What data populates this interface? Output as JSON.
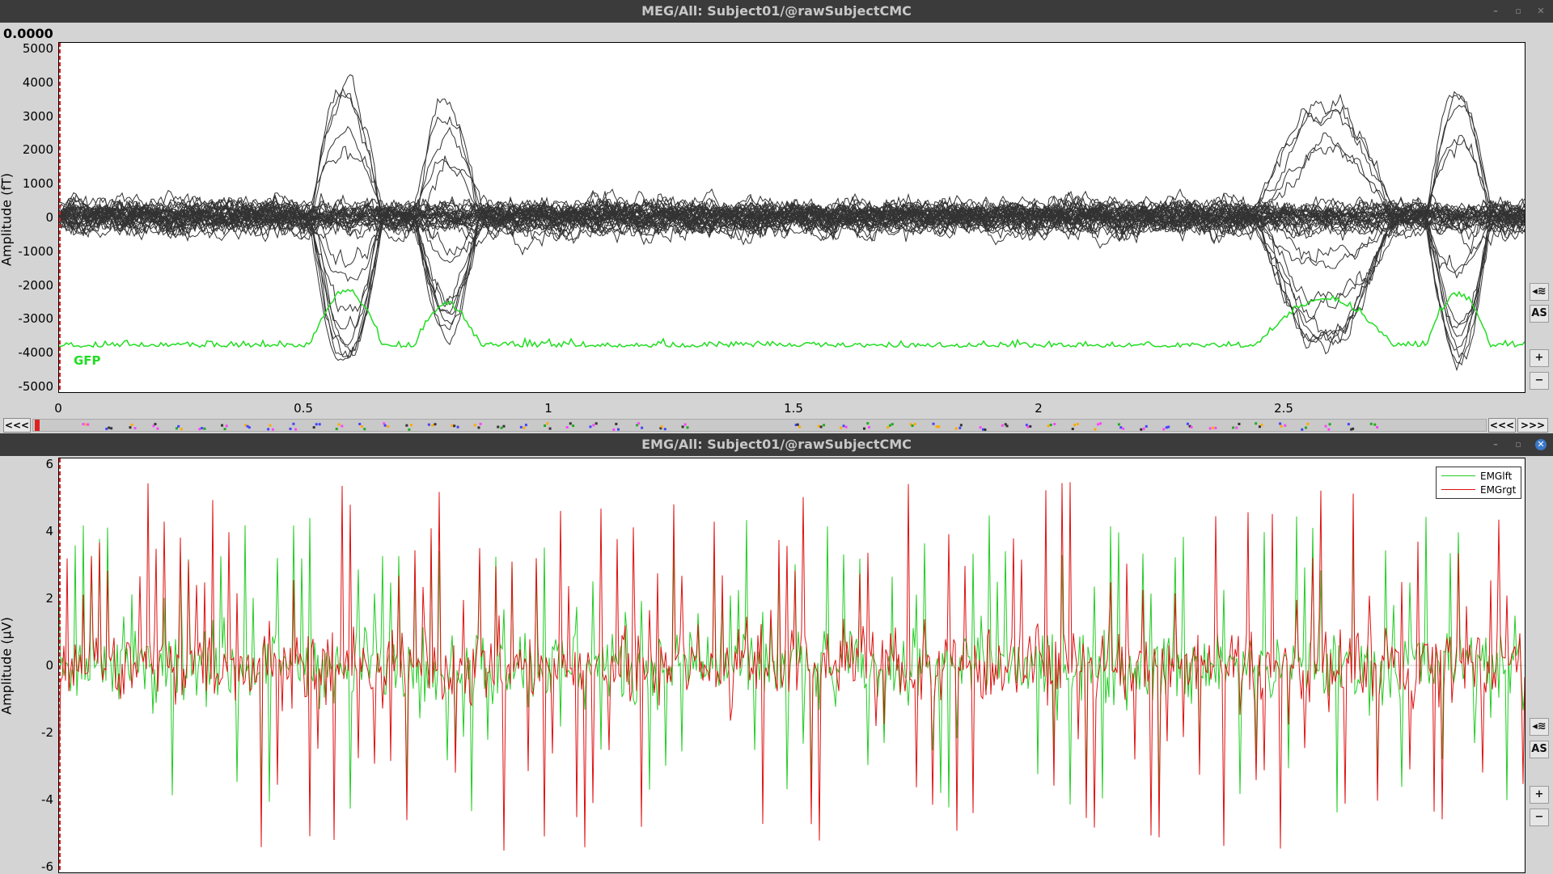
{
  "meg_window": {
    "title": "MEG/All: Subject01/@rawSubjectCMC",
    "cursor_time": "0.0000",
    "ylabel": "Amplitude (fT)",
    "gfp_label": "GFP",
    "yticks": [
      "5000",
      "4000",
      "3000",
      "2000",
      "1000",
      "0",
      "-1000",
      "-2000",
      "-3000",
      "-4000",
      "-5000"
    ],
    "xticks": [
      "0",
      "0.5",
      "1",
      "1.5",
      "2",
      "2.5"
    ],
    "buttons": {
      "filter": "◂≋",
      "autoscale": "AS",
      "zoom_in": "+",
      "zoom_out": "−"
    }
  },
  "navigation": {
    "back_left": "<<<",
    "back_right": "<<<",
    "forward": ">>>"
  },
  "emg_window": {
    "title": "EMG/All: Subject01/@rawSubjectCMC",
    "ylabel": "Amplitude (μV)",
    "yticks": [
      "6",
      "4",
      "2",
      "0",
      "-2",
      "-4",
      "-6"
    ],
    "legend": [
      {
        "name": "EMGlft",
        "color": "#22cc22"
      },
      {
        "name": "EMGrgt",
        "color": "#e01010"
      }
    ],
    "buttons": {
      "filter": "◂≋",
      "autoscale": "AS",
      "zoom_in": "+",
      "zoom_out": "−"
    }
  },
  "colors": {
    "meg_traces": "#333333",
    "gfp": "#22dd22",
    "cursor": "#e02020",
    "emg_left": "#22cc22",
    "emg_right": "#e01010"
  }
}
